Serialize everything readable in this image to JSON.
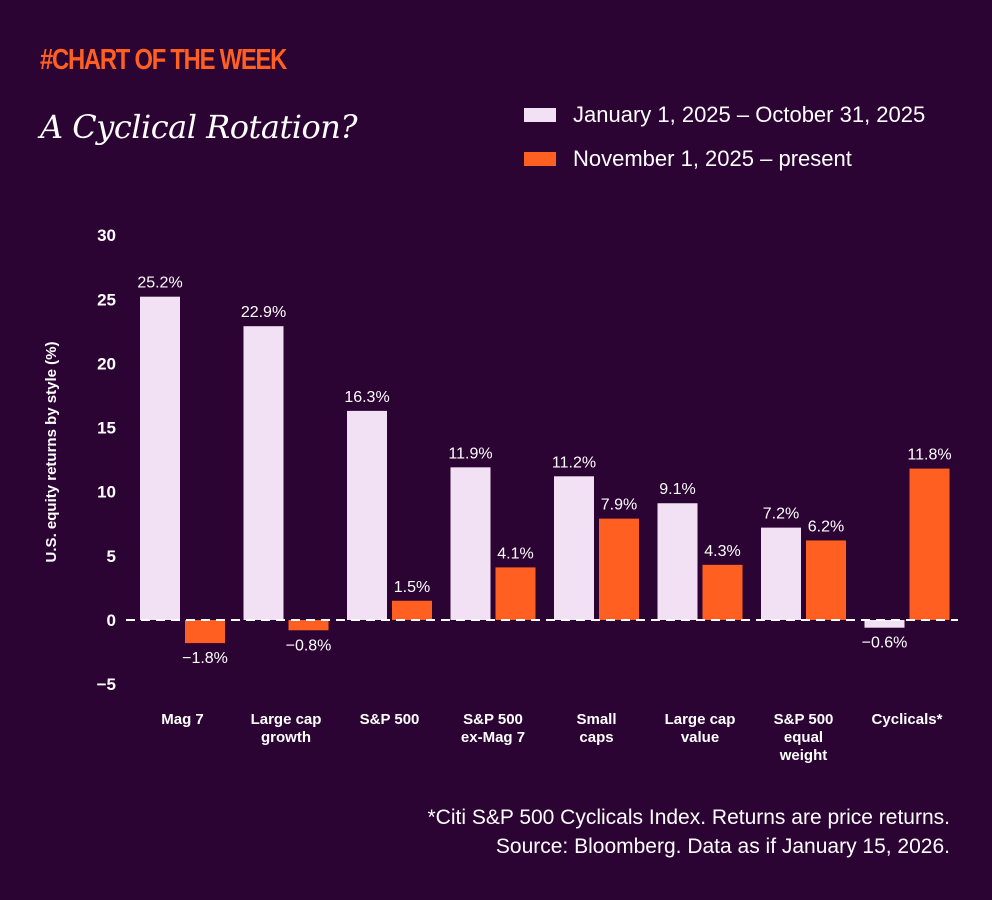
{
  "header": {
    "kicker": "#CHART OF THE WEEK"
  },
  "chart_data": {
    "type": "bar",
    "title": "A Cyclical Rotation?",
    "ylabel": "U.S. equity returns by style (%)",
    "xlabel": "",
    "ylim": [
      -5,
      30
    ],
    "yticks": [
      "30",
      "25",
      "20",
      "15",
      "10",
      "5",
      "0",
      "−5"
    ],
    "ytick_values": [
      30,
      25,
      20,
      15,
      10,
      5,
      0,
      -5
    ],
    "grid": false,
    "legend_position": "top-right",
    "categories": [
      [
        "Mag 7"
      ],
      [
        "Large cap",
        "growth"
      ],
      [
        "S&P 500"
      ],
      [
        "S&P 500",
        "ex-Mag 7"
      ],
      [
        "Small",
        "caps"
      ],
      [
        "Large cap",
        "value"
      ],
      [
        "S&P 500",
        "equal",
        "weight"
      ],
      [
        "Cyclicals*"
      ]
    ],
    "series": [
      {
        "name": "January 1, 2025 – October 31, 2025",
        "color": "#f2e1f4",
        "values": [
          25.2,
          22.9,
          16.3,
          11.9,
          11.2,
          9.1,
          7.2,
          -0.6
        ],
        "labels": [
          "25.2%",
          "22.9%",
          "16.3%",
          "11.9%",
          "11.2%",
          "9.1%",
          "7.2%",
          "−0.6%"
        ]
      },
      {
        "name": "November 1, 2025 – present",
        "color": "#ff6022",
        "values": [
          -1.8,
          -0.8,
          1.5,
          4.1,
          7.9,
          4.3,
          6.2,
          11.8
        ],
        "labels": [
          "−1.8%",
          "−0.8%",
          "1.5%",
          "4.1%",
          "7.9%",
          "4.3%",
          "6.2%",
          "11.8%"
        ]
      }
    ]
  },
  "footnote": {
    "line1": "*Citi S&P 500 Cyclicals Index. Returns are price returns.",
    "line2": "Source: Bloomberg. Data as if January 15, 2026."
  }
}
